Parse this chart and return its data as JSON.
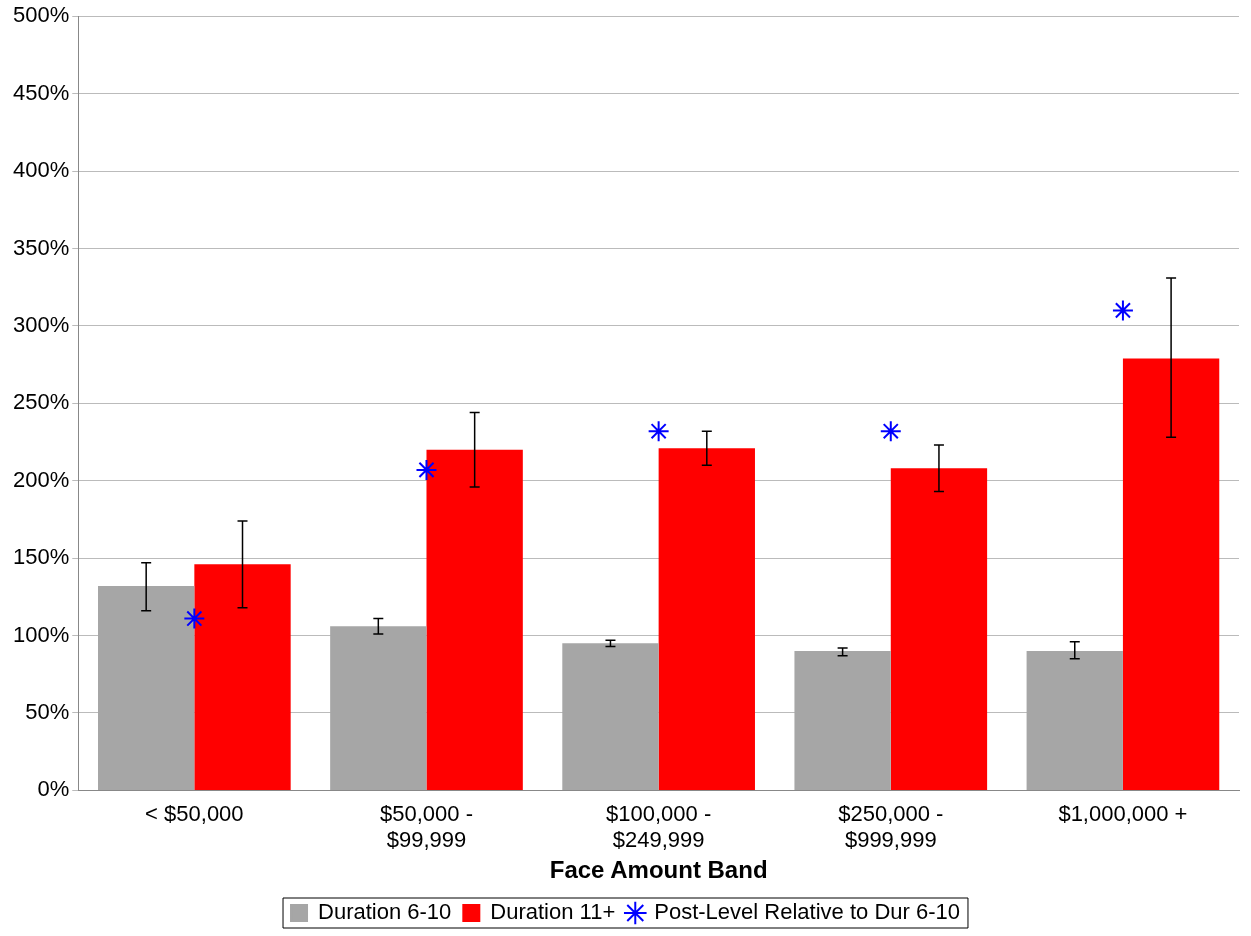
{
  "chart_data": {
    "type": "bar",
    "xlabel": "Face Amount Band",
    "categories": [
      "< $50,000",
      "$50,000 -\n$99,999",
      "$100,000 -\n$249,999",
      "$250,000 -\n$999,999",
      "$1,000,000 +"
    ],
    "series": [
      {
        "name": "Duration 6-10",
        "color": "#a6a6a6",
        "values": [
          132,
          106,
          95,
          90,
          90
        ],
        "errors": [
          [
            116,
            147
          ],
          [
            101,
            111
          ],
          [
            93,
            97
          ],
          [
            87,
            92
          ],
          [
            85,
            96
          ]
        ]
      },
      {
        "name": "Duration 11+",
        "color": "#ff0000",
        "values": [
          146,
          220,
          221,
          208,
          279
        ],
        "errors": [
          [
            118,
            174
          ],
          [
            196,
            244
          ],
          [
            210,
            232
          ],
          [
            193,
            223
          ],
          [
            228,
            331
          ]
        ]
      },
      {
        "name": "Post-Level Relative to Dur 6-10",
        "type": "scatter",
        "color": "#0000ff",
        "marker": "cross",
        "x": [
          "< $50,000",
          "$50,000 -\n$99,999",
          "$100,000 -\n$249,999",
          "$250,000 -\n$999,999",
          "$1,000,000 +"
        ],
        "values": [
          111,
          207,
          232,
          232,
          310
        ]
      }
    ],
    "ylim": [
      0,
      500
    ],
    "yticks": [
      {
        "value": 0,
        "label": "0%"
      },
      {
        "value": 50,
        "label": "50%"
      },
      {
        "value": 100,
        "label": "100%"
      },
      {
        "value": 150,
        "label": "150%"
      },
      {
        "value": 200,
        "label": "200%"
      },
      {
        "value": 250,
        "label": "250%"
      },
      {
        "value": 300,
        "label": "300%"
      },
      {
        "value": 350,
        "label": "350%"
      },
      {
        "value": 400,
        "label": "400%"
      },
      {
        "value": 450,
        "label": "450%"
      },
      {
        "value": 500,
        "label": "500%"
      }
    ],
    "grid": "y",
    "legend": "bottom"
  }
}
